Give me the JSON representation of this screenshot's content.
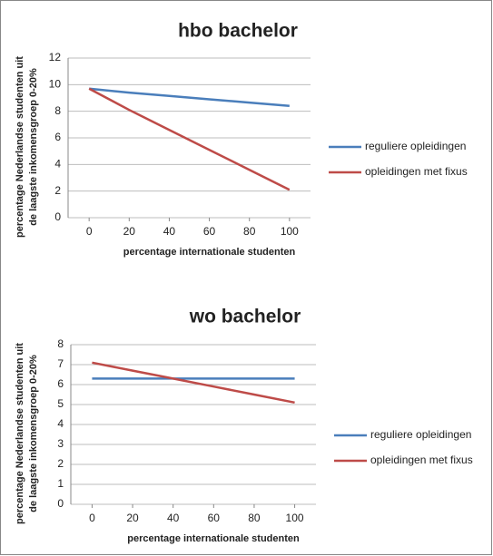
{
  "chart_data": [
    {
      "type": "line",
      "title": "hbo bachelor",
      "xlabel": "percentage internationale studenten",
      "ylabel": [
        "percentage Nederlandse studenten uit",
        "de laagste inkomensgroep 0-20%"
      ],
      "x": [
        0,
        20,
        40,
        60,
        80,
        100
      ],
      "series": [
        {
          "name": "reguliere opleidingen",
          "color": "#4a7ebb",
          "values": [
            9.7,
            9.4,
            9.15,
            8.9,
            8.65,
            8.4
          ]
        },
        {
          "name": "opleidingen met fixus",
          "color": "#be4b48",
          "values": [
            9.7,
            8.1,
            6.6,
            5.1,
            3.6,
            2.1
          ]
        }
      ],
      "xlim": [
        -10.5,
        110.5
      ],
      "xticks": [
        0,
        20,
        40,
        60,
        80,
        100
      ],
      "ylim": [
        0,
        12
      ],
      "yticks": [
        0,
        2,
        4,
        6,
        8,
        10,
        12
      ],
      "grid": true,
      "legend": "right"
    },
    {
      "type": "line",
      "title": "wo bachelor",
      "xlabel": "percentage internationale studenten",
      "ylabel": [
        "percentage Nederlandse studenten uit",
        "de laagste inkomensgroep 0-20%"
      ],
      "x": [
        0,
        20,
        40,
        60,
        80,
        100
      ],
      "series": [
        {
          "name": "reguliere opleidingen",
          "color": "#4a7ebb",
          "values": [
            6.3,
            6.3,
            6.3,
            6.3,
            6.3,
            6.3
          ]
        },
        {
          "name": "opleidingen met fixus",
          "color": "#be4b48",
          "values": [
            7.1,
            6.7,
            6.3,
            5.9,
            5.5,
            5.1
          ]
        }
      ],
      "xlim": [
        -10.5,
        110.5
      ],
      "xticks": [
        0,
        20,
        40,
        60,
        80,
        100
      ],
      "ylim": [
        0,
        8
      ],
      "yticks": [
        0,
        1,
        2,
        3,
        4,
        5,
        6,
        7,
        8
      ],
      "grid": true,
      "legend": "right"
    }
  ]
}
